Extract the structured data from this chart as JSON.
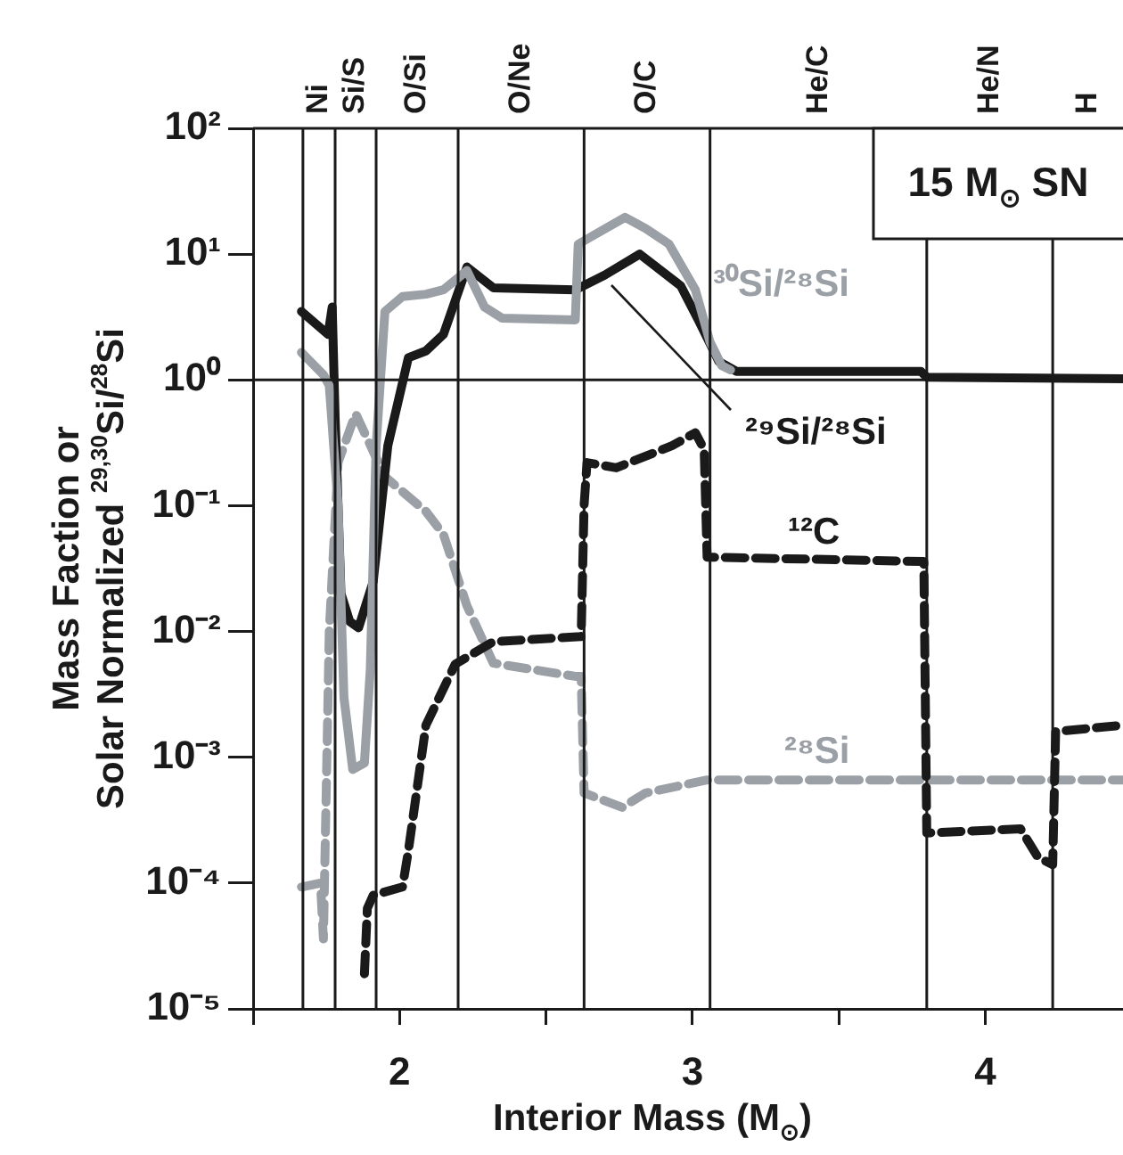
{
  "chart_data": {
    "type": "line",
    "xlabel": "Interior Mass (M$_{⊙}$)",
    "ylabel": "Mass Faction or\nSolar Normalized $^{29,30}$Si/$^{28}$Si",
    "log": "y",
    "grid": false,
    "legend": false,
    "marker": "none",
    "xlim": [
      1.5,
      4.47
    ],
    "xticks": [
      {
        "value": 1.5,
        "label": null
      },
      2,
      {
        "value": 2.5,
        "label": null
      },
      3,
      {
        "value": 3.5,
        "label": null
      },
      4
    ],
    "ylim": [
      1e-05,
      100
    ],
    "yticks": [
      {
        "value": 1e-05,
        "label": "10⁻⁵"
      },
      {
        "value": 0.0001,
        "label": "10⁻⁴"
      },
      {
        "value": 0.001,
        "label": "10⁻³"
      },
      {
        "value": 0.01,
        "label": "10⁻²"
      },
      {
        "value": 0.1,
        "label": "10⁻¹"
      },
      {
        "value": 1,
        "label": "10⁰"
      },
      {
        "value": 10,
        "label": "10¹"
      },
      {
        "value": 100,
        "label": "10²"
      }
    ],
    "series": [
      {
        "name": "³⁰Si/²⁸Si",
        "color": "#9aa0a6",
        "line_style": "solid",
        "x": [
          1.665,
          1.74,
          1.76,
          1.79,
          1.81,
          1.84,
          1.88,
          1.9,
          1.92,
          1.95,
          2.01,
          2.09,
          2.15,
          2.23,
          2.29,
          2.35,
          2.6,
          2.61,
          2.66,
          2.77,
          2.84,
          2.92,
          3.01,
          3.06,
          3.1,
          3.13
        ],
        "values": [
          1.65,
          1.1,
          0.9,
          0.1,
          0.003,
          0.0008,
          0.0009,
          0.005,
          0.3,
          3.5,
          4.6,
          4.8,
          5.2,
          7.4,
          3.8,
          3.1,
          3.0,
          12,
          14,
          19.6,
          16,
          12,
          5.2,
          2.0,
          1.3,
          1.2
        ]
      },
      {
        "name": "²⁹Si/²⁸Si",
        "color": "#1a1a1a",
        "line_style": "solid",
        "x": [
          1.665,
          1.756,
          1.77,
          1.78,
          1.79,
          1.8,
          1.83,
          1.86,
          1.91,
          1.96,
          2.03,
          2.09,
          2.15,
          2.23,
          2.32,
          2.6,
          2.7,
          2.82,
          2.96,
          3.02,
          3.09,
          3.15,
          3.78,
          3.8,
          4.47
        ],
        "values": [
          3.5,
          2.3,
          3.8,
          0.5,
          0.1,
          0.02,
          0.012,
          0.0107,
          0.025,
          0.3,
          1.5,
          1.7,
          2.3,
          7.9,
          5.4,
          5.2,
          6.8,
          10,
          5.6,
          3.0,
          1.4,
          1.17,
          1.17,
          1.05,
          1.02
        ]
      },
      {
        "name": "¹²C",
        "color": "#1a1a1a",
        "line_style": "dashed",
        "x": [
          1.88,
          1.89,
          1.91,
          2.01,
          2.03,
          2.09,
          2.19,
          2.32,
          2.62,
          2.63,
          2.64,
          2.74,
          2.93,
          3.01,
          3.04,
          3.05,
          3.79,
          3.8,
          4.12,
          4.18,
          4.23,
          4.24,
          4.47
        ],
        "values": [
          1.9e-05,
          6.3e-05,
          8e-05,
          9.3e-05,
          0.00018,
          0.0018,
          0.0055,
          0.0083,
          0.0091,
          0.1,
          0.22,
          0.2,
          0.3,
          0.38,
          0.28,
          0.039,
          0.036,
          0.00025,
          0.00027,
          0.00016,
          0.00014,
          0.0016,
          0.0018
        ]
      },
      {
        "name": "²⁸Si",
        "color": "#9aa0a6",
        "line_style": "dashed",
        "x": [
          1.665,
          1.73,
          1.74,
          1.76,
          1.79,
          1.85,
          1.95,
          2.09,
          2.15,
          2.23,
          2.32,
          2.6,
          2.62,
          2.63,
          2.76,
          2.84,
          3.05,
          4.47
        ],
        "values": [
          9.3e-05,
          0.0001,
          3.6e-05,
          0.01,
          0.22,
          0.54,
          0.17,
          0.09,
          0.059,
          0.016,
          0.0056,
          0.0044,
          0.0044,
          0.00052,
          0.0004,
          0.00052,
          0.00066,
          0.00066
        ]
      }
    ],
    "ref_lines": [
      {
        "axis": "y",
        "value": 1,
        "color": "#1a1a1a"
      },
      {
        "axis": "x",
        "value": 1.67,
        "color": "#1a1a1a"
      },
      {
        "axis": "x",
        "value": 1.78,
        "color": "#1a1a1a"
      },
      {
        "axis": "x",
        "value": 1.92,
        "color": "#1a1a1a"
      },
      {
        "axis": "x",
        "value": 2.2,
        "color": "#1a1a1a"
      },
      {
        "axis": "x",
        "value": 2.63,
        "color": "#1a1a1a"
      },
      {
        "axis": "x",
        "value": 3.06,
        "color": "#1a1a1a"
      },
      {
        "axis": "x",
        "value": 3.8,
        "color": "#1a1a1a"
      },
      {
        "axis": "x",
        "value": 4.23,
        "color": "#1a1a1a"
      }
    ],
    "annotations": [
      "Ni",
      "Si/S",
      "O/Si",
      "O/Ne",
      "O/C",
      "He/C",
      "He/N",
      "H",
      "15 M$_{⊙}$ SN"
    ]
  }
}
